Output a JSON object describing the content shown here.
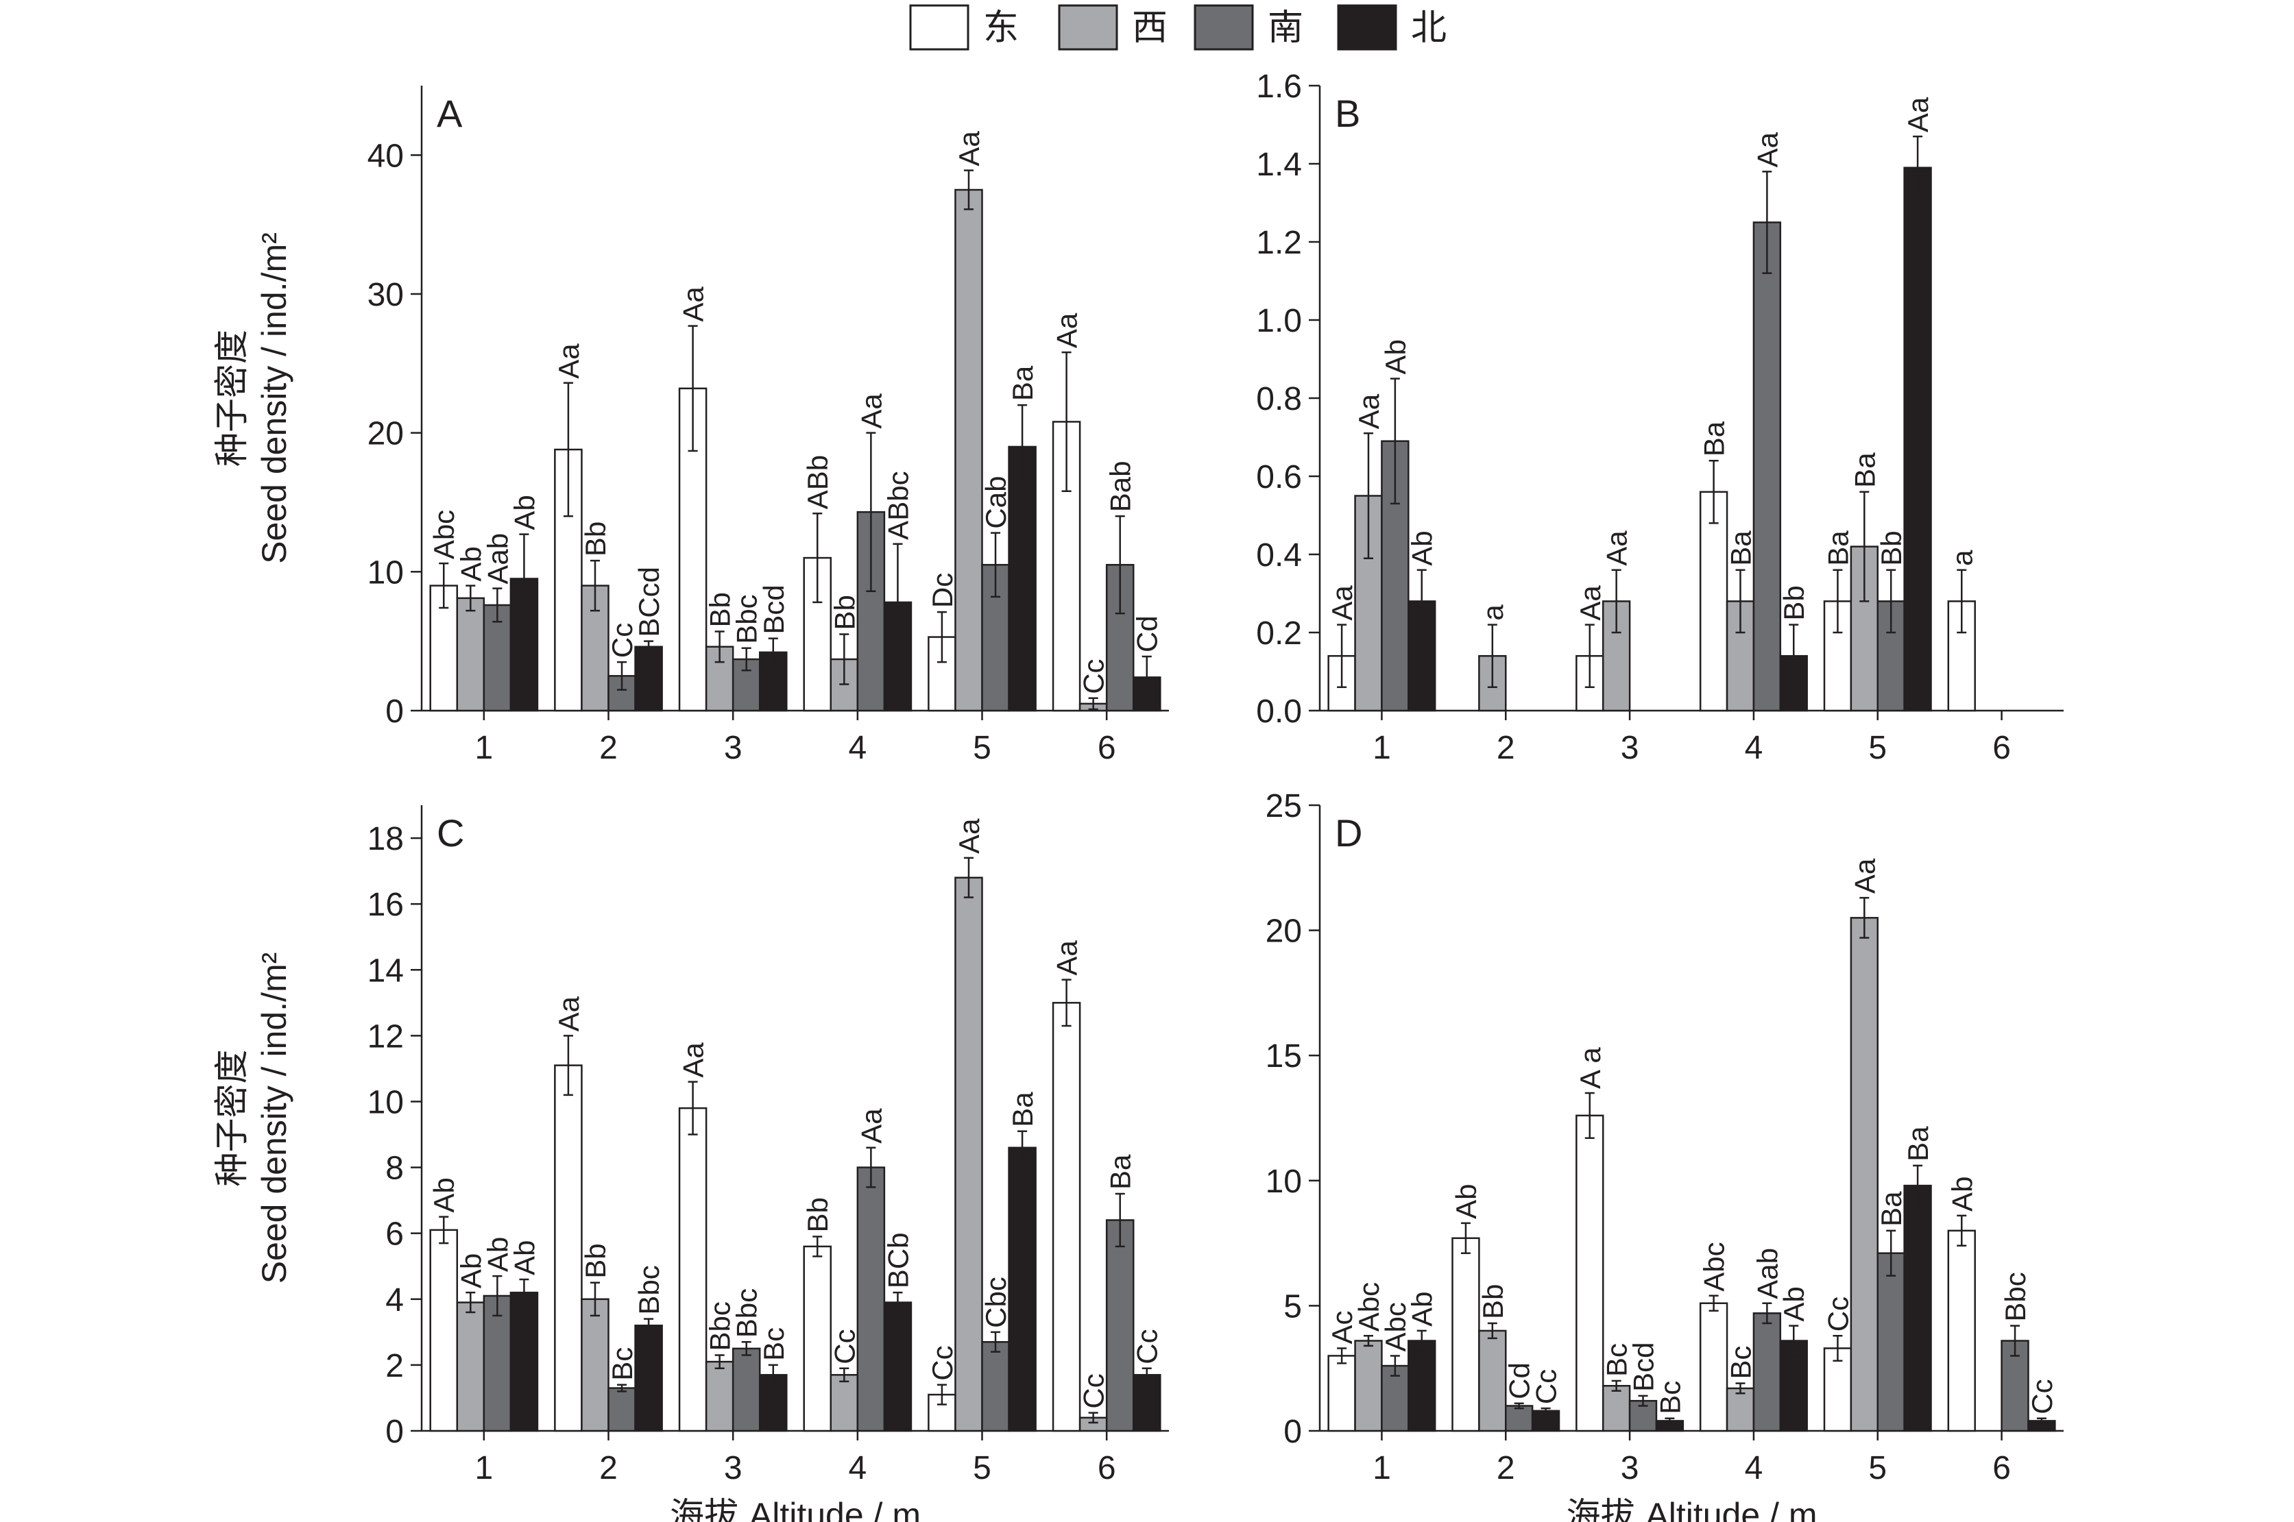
{
  "legend": {
    "entries": [
      {
        "label": "东",
        "color": "#ffffff"
      },
      {
        "label": "西",
        "color": "#a7a9ac"
      },
      {
        "label": "南",
        "color": "#6d6e71"
      },
      {
        "label": "北",
        "color": "#231f20"
      }
    ]
  },
  "chart_data": [
    {
      "type": "bar",
      "panel": "A",
      "categories": [
        "1",
        "2",
        "3",
        "4",
        "5",
        "6"
      ],
      "ylabel_cn": "种子密度",
      "ylabel": "Seed density / ind./m²",
      "xlabel": "",
      "ylim": [
        0,
        45
      ],
      "yticks": [
        0,
        10,
        20,
        30,
        40
      ],
      "series": [
        {
          "name": "东",
          "values": [
            9.0,
            18.8,
            23.2,
            11.0,
            5.3,
            20.8
          ],
          "errors": [
            1.6,
            4.8,
            4.5,
            3.2,
            1.8,
            5.0
          ],
          "labels": [
            "Abc",
            "Aa",
            "Aa",
            "ABb",
            "Dc",
            "Aa"
          ]
        },
        {
          "name": "西",
          "values": [
            8.1,
            9.0,
            4.6,
            3.7,
            37.5,
            0.5
          ],
          "errors": [
            0.9,
            1.8,
            1.1,
            1.8,
            1.4,
            0.4
          ],
          "labels": [
            "Ab",
            "Bb",
            "Bb",
            "Bb",
            "Aa",
            "Cc"
          ]
        },
        {
          "name": "南",
          "values": [
            7.6,
            2.5,
            3.7,
            14.3,
            10.5,
            10.5
          ],
          "errors": [
            1.2,
            1.0,
            0.8,
            5.7,
            2.3,
            3.5
          ],
          "labels": [
            "Aab",
            "Cc",
            "Bbc",
            "Aa",
            "Cab",
            "Bab"
          ]
        },
        {
          "name": "北",
          "values": [
            9.5,
            4.6,
            4.2,
            7.8,
            19.0,
            2.4
          ],
          "errors": [
            3.2,
            0.4,
            1.0,
            4.2,
            3.0,
            1.5
          ],
          "labels": [
            "Ab",
            "BCcd",
            "Bcd",
            "ABbc",
            "Ba",
            "Cd"
          ]
        }
      ]
    },
    {
      "type": "bar",
      "panel": "B",
      "categories": [
        "1",
        "2",
        "3",
        "4",
        "5",
        "6"
      ],
      "ylabel": "",
      "xlabel": "",
      "ylim": [
        0,
        1.6
      ],
      "yticks": [
        0,
        0.2,
        0.4,
        0.6,
        0.8,
        1.0,
        1.2,
        1.4,
        1.6
      ],
      "series": [
        {
          "name": "东",
          "values": [
            0.14,
            null,
            0.14,
            0.56,
            0.28,
            0.28
          ],
          "errors": [
            0.08,
            null,
            0.08,
            0.08,
            0.08,
            0.08
          ],
          "labels": [
            "Aa",
            "",
            "Aa",
            "Ba",
            "Ba",
            "a"
          ]
        },
        {
          "name": "西",
          "values": [
            0.55,
            0.14,
            0.28,
            0.28,
            0.42,
            null
          ],
          "errors": [
            0.16,
            0.08,
            0.08,
            0.08,
            0.14,
            null
          ],
          "labels": [
            "Aa",
            "a",
            "Aa",
            "Ba",
            "Ba",
            ""
          ]
        },
        {
          "name": "南",
          "values": [
            0.69,
            null,
            null,
            1.25,
            0.28,
            null
          ],
          "errors": [
            0.16,
            null,
            null,
            0.13,
            0.08,
            null
          ],
          "labels": [
            "Ab",
            "",
            "",
            "Aa",
            "Bb",
            ""
          ]
        },
        {
          "name": "北",
          "values": [
            0.28,
            null,
            null,
            0.14,
            1.39,
            null
          ],
          "errors": [
            0.08,
            null,
            null,
            0.08,
            0.08,
            null
          ],
          "labels": [
            "Ab",
            "",
            "",
            "Bb",
            "Aa",
            ""
          ]
        }
      ]
    },
    {
      "type": "bar",
      "panel": "C",
      "categories": [
        "1",
        "2",
        "3",
        "4",
        "5",
        "6"
      ],
      "ylabel_cn": "种子密度",
      "ylabel": "Seed density / ind./m²",
      "xlabel_cn": "海拔",
      "xlabel": "Altitude / m",
      "ylim": [
        0,
        19
      ],
      "yticks": [
        0,
        2,
        4,
        6,
        8,
        10,
        12,
        14,
        16,
        18
      ],
      "series": [
        {
          "name": "东",
          "values": [
            6.1,
            11.1,
            9.8,
            5.6,
            1.1,
            13.0
          ],
          "errors": [
            0.4,
            0.9,
            0.8,
            0.3,
            0.3,
            0.7
          ],
          "labels": [
            "Ab",
            "Aa",
            "Aa",
            "Bb",
            "Cc",
            "Aa"
          ]
        },
        {
          "name": "西",
          "values": [
            3.9,
            4.0,
            2.1,
            1.7,
            16.8,
            0.4
          ],
          "errors": [
            0.3,
            0.5,
            0.2,
            0.2,
            0.6,
            0.15
          ],
          "labels": [
            "Ab",
            "Bb",
            "Bbc",
            "Cc",
            "Aa",
            "Cc"
          ]
        },
        {
          "name": "南",
          "values": [
            4.1,
            1.3,
            2.5,
            8.0,
            2.7,
            6.4
          ],
          "errors": [
            0.6,
            0.1,
            0.2,
            0.6,
            0.3,
            0.8
          ],
          "labels": [
            "Ab",
            "Bc",
            "Bbc",
            "Aa",
            "Cbc",
            "Ba"
          ]
        },
        {
          "name": "北",
          "values": [
            4.2,
            3.2,
            1.7,
            3.9,
            8.6,
            1.7
          ],
          "errors": [
            0.4,
            0.2,
            0.3,
            0.3,
            0.5,
            0.2
          ],
          "labels": [
            "Ab",
            "Bbc",
            "Bc",
            "BCb",
            "Ba",
            "Cc"
          ]
        }
      ]
    },
    {
      "type": "bar",
      "panel": "D",
      "categories": [
        "1",
        "2",
        "3",
        "4",
        "5",
        "6"
      ],
      "ylabel": "",
      "xlabel_cn": "海拔",
      "xlabel": "Altitude / m",
      "ylim": [
        0,
        25
      ],
      "yticks": [
        0,
        5,
        10,
        15,
        20,
        25
      ],
      "series": [
        {
          "name": "东",
          "values": [
            3.0,
            7.7,
            12.6,
            5.1,
            3.3,
            8.0
          ],
          "errors": [
            0.3,
            0.6,
            0.9,
            0.3,
            0.5,
            0.6
          ],
          "labels": [
            "Ac",
            "Ab",
            "A a",
            "Abc",
            "Cc",
            "Ab"
          ]
        },
        {
          "name": "西",
          "values": [
            3.6,
            4.0,
            1.8,
            1.7,
            20.5,
            null
          ],
          "errors": [
            0.2,
            0.3,
            0.2,
            0.2,
            0.8,
            null
          ],
          "labels": [
            "Abc",
            "Bb",
            "Bc",
            "Bc",
            "Aa",
            ""
          ]
        },
        {
          "name": "南",
          "values": [
            2.6,
            1.0,
            1.2,
            4.7,
            7.1,
            3.6
          ],
          "errors": [
            0.4,
            0.1,
            0.2,
            0.4,
            0.9,
            0.6
          ],
          "labels": [
            "Abc",
            "Cd",
            "Bcd",
            "Aab",
            "Ba",
            "Bbc"
          ]
        },
        {
          "name": "北",
          "values": [
            3.6,
            0.8,
            0.4,
            3.6,
            9.8,
            0.4
          ],
          "errors": [
            0.4,
            0.1,
            0.1,
            0.6,
            0.8,
            0.1
          ],
          "labels": [
            "Ab",
            "Cc",
            "Bc",
            "Ab",
            "Ba",
            "Cc"
          ]
        }
      ]
    }
  ]
}
